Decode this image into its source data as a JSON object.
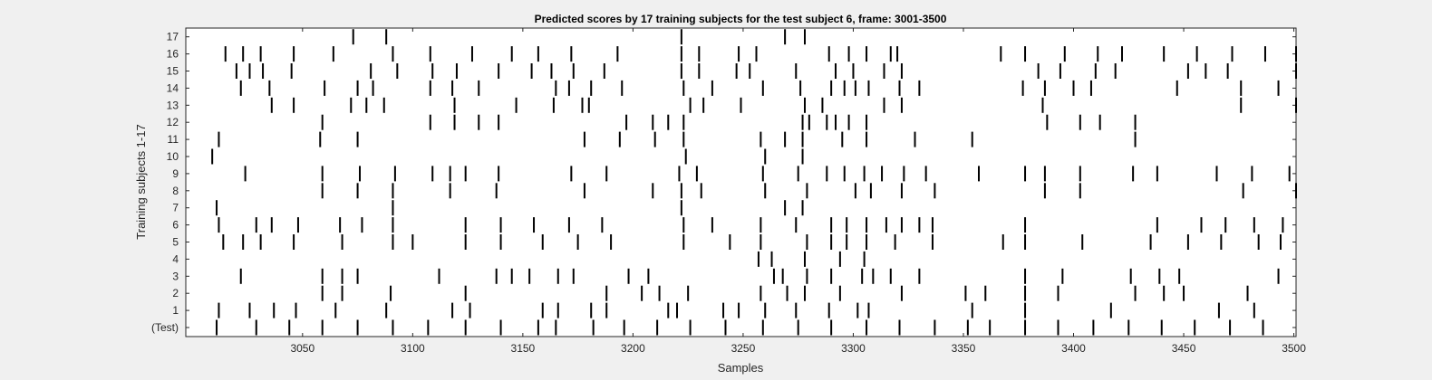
{
  "chart_data": {
    "type": "raster",
    "title": "Predicted scores by 17 training subjects for the test subject 6, frame: 3001-3500",
    "xlabel": "Samples",
    "ylabel": "Training subjects 1-17",
    "xlim": [
      3001,
      3500
    ],
    "x_ticks": [
      3050,
      3100,
      3150,
      3200,
      3250,
      3300,
      3350,
      3400,
      3450,
      3500
    ],
    "y_tick_labels": [
      "(Test)",
      "1",
      "2",
      "3",
      "4",
      "5",
      "6",
      "7",
      "8",
      "9",
      "10",
      "11",
      "12",
      "13",
      "14",
      "15",
      "16",
      "17"
    ],
    "grid": false,
    "series": [
      {
        "label": "(Test)",
        "x": [
          3011,
          3029,
          3044,
          3059,
          3075,
          3091,
          3107,
          3124,
          3140,
          3157,
          3165,
          3182,
          3196,
          3211,
          3226,
          3242,
          3259,
          3275,
          3290,
          3306,
          3321,
          3337,
          3352,
          3362,
          3378,
          3393,
          3409,
          3425,
          3440,
          3455,
          3471,
          3486
        ]
      },
      {
        "label": "1",
        "x": [
          3012,
          3026,
          3037,
          3047,
          3065,
          3088,
          3118,
          3126,
          3159,
          3166,
          3181,
          3188,
          3216,
          3220,
          3241,
          3248,
          3260,
          3274,
          3289,
          3302,
          3307,
          3354,
          3378,
          3417,
          3466,
          3482
        ]
      },
      {
        "label": "2",
        "x": [
          3059,
          3068,
          3090,
          3124,
          3188,
          3204,
          3212,
          3225,
          3258,
          3270,
          3278,
          3294,
          3322,
          3351,
          3360,
          3378,
          3393,
          3428,
          3441,
          3450,
          3479
        ]
      },
      {
        "label": "3",
        "x": [
          3022,
          3059,
          3068,
          3075,
          3112,
          3138,
          3145,
          3153,
          3166,
          3173,
          3198,
          3207,
          3264,
          3268,
          3279,
          3290,
          3304,
          3309,
          3317,
          3330,
          3378,
          3395,
          3426,
          3439,
          3448,
          3493
        ]
      },
      {
        "label": "4",
        "x": [
          3257,
          3263,
          3278,
          3294,
          3305
        ]
      },
      {
        "label": "5",
        "x": [
          3014,
          3023,
          3031,
          3046,
          3068,
          3091,
          3100,
          3124,
          3140,
          3159,
          3175,
          3190,
          3223,
          3244,
          3258,
          3279,
          3290,
          3297,
          3306,
          3319,
          3336,
          3368,
          3378,
          3404,
          3435,
          3452,
          3467,
          3484,
          3494
        ]
      },
      {
        "label": "6",
        "x": [
          3012,
          3029,
          3036,
          3048,
          3067,
          3077,
          3091,
          3124,
          3140,
          3155,
          3171,
          3186,
          3223,
          3236,
          3258,
          3274,
          3290,
          3297,
          3306,
          3315,
          3322,
          3330,
          3336,
          3378,
          3438,
          3458,
          3469,
          3482,
          3495
        ]
      },
      {
        "label": "7",
        "x": [
          3011,
          3091,
          3222,
          3269,
          3277
        ]
      },
      {
        "label": "8",
        "x": [
          3059,
          3075,
          3091,
          3117,
          3138,
          3178,
          3209,
          3222,
          3231,
          3260,
          3279,
          3301,
          3308,
          3322,
          3337,
          3387,
          3403,
          3477,
          3501
        ]
      },
      {
        "label": "9",
        "x": [
          3024,
          3059,
          3076,
          3092,
          3109,
          3117,
          3124,
          3139,
          3172,
          3188,
          3221,
          3229,
          3259,
          3275,
          3288,
          3296,
          3305,
          3313,
          3323,
          3333,
          3357,
          3378,
          3387,
          3403,
          3427,
          3438,
          3465,
          3481,
          3498
        ]
      },
      {
        "label": "10",
        "x": [
          3009,
          3224,
          3260,
          3277
        ]
      },
      {
        "label": "11",
        "x": [
          3012,
          3058,
          3075,
          3178,
          3194,
          3210,
          3223,
          3258,
          3269,
          3277,
          3295,
          3306,
          3328,
          3354,
          3428
        ]
      },
      {
        "label": "12",
        "x": [
          3059,
          3108,
          3119,
          3130,
          3139,
          3197,
          3209,
          3216,
          3223,
          3277,
          3280,
          3288,
          3292,
          3298,
          3306,
          3388,
          3403,
          3412,
          3428
        ]
      },
      {
        "label": "13",
        "x": [
          3036,
          3046,
          3072,
          3079,
          3087,
          3119,
          3147,
          3164,
          3177,
          3180,
          3226,
          3232,
          3249,
          3278,
          3286,
          3314,
          3322,
          3386,
          3476,
          3501
        ]
      },
      {
        "label": "14",
        "x": [
          3022,
          3035,
          3060,
          3075,
          3082,
          3108,
          3118,
          3130,
          3165,
          3171,
          3181,
          3195,
          3223,
          3236,
          3259,
          3276,
          3290,
          3296,
          3301,
          3307,
          3321,
          3330,
          3377,
          3387,
          3400,
          3408,
          3447,
          3476,
          3493
        ]
      },
      {
        "label": "15",
        "x": [
          3020,
          3026,
          3032,
          3045,
          3081,
          3093,
          3109,
          3120,
          3139,
          3154,
          3163,
          3173,
          3187,
          3222,
          3230,
          3247,
          3253,
          3274,
          3292,
          3300,
          3314,
          3322,
          3384,
          3394,
          3410,
          3419,
          3452,
          3460,
          3470,
          3501
        ]
      },
      {
        "label": "16",
        "x": [
          3015,
          3023,
          3031,
          3046,
          3064,
          3091,
          3108,
          3127,
          3145,
          3157,
          3172,
          3193,
          3222,
          3230,
          3248,
          3256,
          3289,
          3298,
          3306,
          3317,
          3320,
          3367,
          3378,
          3396,
          3411,
          3422,
          3441,
          3456,
          3472,
          3487,
          3501
        ]
      },
      {
        "label": "17",
        "x": [
          3073,
          3088,
          3222,
          3269,
          3278
        ]
      }
    ]
  }
}
